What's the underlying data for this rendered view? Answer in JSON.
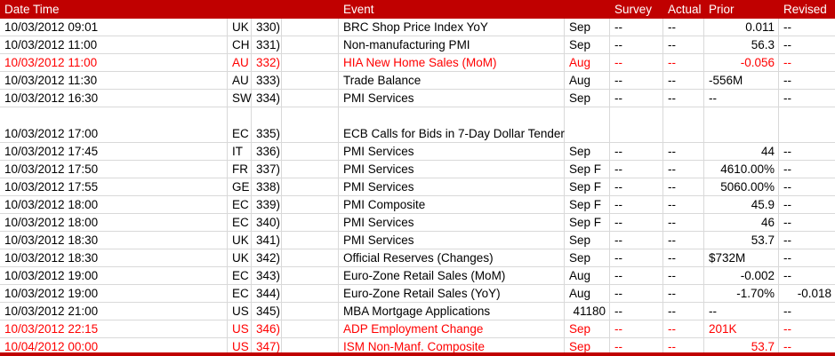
{
  "columns": {
    "date_time": "Date Time",
    "event": "Event",
    "survey": "Survey",
    "actual": "Actual",
    "prior": "Prior",
    "revised": "Revised"
  },
  "colors": {
    "header_bg": "#C00000",
    "header_text": "#FFFFFF",
    "body_text": "#000000",
    "highlight_text": "#FF0000",
    "gridline": "#D9D9D9",
    "row_bg": "#FFFFFF"
  },
  "rows": [
    {
      "date": "10/03/2012 09:01",
      "country": "UK",
      "num": "330)",
      "event": "BRC Shop Price Index YoY",
      "period": "Sep",
      "survey": "--",
      "actual": "--",
      "prior": "0.011",
      "revised": "--",
      "red": false,
      "tall": false
    },
    {
      "date": "10/03/2012 11:00",
      "country": "CH",
      "num": "331)",
      "event": "Non-manufacturing PMI",
      "period": "Sep",
      "survey": "--",
      "actual": "--",
      "prior": "56.3",
      "revised": "--",
      "red": false,
      "tall": false
    },
    {
      "date": "10/03/2012 11:00",
      "country": "AU",
      "num": "332)",
      "event": "HIA New Home Sales (MoM)",
      "period": "Aug",
      "survey": "--",
      "actual": "--",
      "prior": "-0.056",
      "revised": "--",
      "red": true,
      "tall": false
    },
    {
      "date": "10/03/2012 11:30",
      "country": "AU",
      "num": "333)",
      "event": "Trade Balance",
      "period": "Aug",
      "survey": "--",
      "actual": "--",
      "prior": "-556M",
      "revised": "--",
      "red": false,
      "tall": false
    },
    {
      "date": "10/03/2012 16:30",
      "country": "SW",
      "num": "334)",
      "event": "PMI Services",
      "period": "Sep",
      "survey": "--",
      "actual": "--",
      "prior": "--",
      "revised": "--",
      "red": false,
      "tall": false
    },
    {
      "date": "10/03/2012 17:00",
      "country": "EC",
      "num": "335)",
      "event": "ECB Calls for Bids in 7-Day Dollar Tender",
      "period": "",
      "survey": "",
      "actual": "",
      "prior": "",
      "revised": "",
      "red": false,
      "tall": true
    },
    {
      "date": "10/03/2012 17:45",
      "country": "IT",
      "num": "336)",
      "event": "PMI Services",
      "period": "Sep",
      "survey": "--",
      "actual": "--",
      "prior": "44",
      "revised": "--",
      "red": false,
      "tall": false
    },
    {
      "date": "10/03/2012 17:50",
      "country": "FR",
      "num": "337)",
      "event": "PMI Services",
      "period": "Sep F",
      "survey": "--",
      "actual": "--",
      "prior": "4610.00%",
      "revised": "--",
      "red": false,
      "tall": false
    },
    {
      "date": "10/03/2012 17:55",
      "country": "GE",
      "num": "338)",
      "event": "PMI Services",
      "period": "Sep F",
      "survey": "--",
      "actual": "--",
      "prior": "5060.00%",
      "revised": "--",
      "red": false,
      "tall": false
    },
    {
      "date": "10/03/2012 18:00",
      "country": "EC",
      "num": "339)",
      "event": "PMI Composite",
      "period": "Sep F",
      "survey": "--",
      "actual": "--",
      "prior": "45.9",
      "revised": "--",
      "red": false,
      "tall": false
    },
    {
      "date": "10/03/2012 18:00",
      "country": "EC",
      "num": "340)",
      "event": "PMI Services",
      "period": "Sep F",
      "survey": "--",
      "actual": "--",
      "prior": "46",
      "revised": "--",
      "red": false,
      "tall": false
    },
    {
      "date": "10/03/2012 18:30",
      "country": "UK",
      "num": "341)",
      "event": "PMI Services",
      "period": "Sep",
      "survey": "--",
      "actual": "--",
      "prior": "53.7",
      "revised": "--",
      "red": false,
      "tall": false
    },
    {
      "date": "10/03/2012 18:30",
      "country": "UK",
      "num": "342)",
      "event": "Official Reserves (Changes)",
      "period": "Sep",
      "survey": "--",
      "actual": "--",
      "prior": "$732M",
      "revised": "--",
      "red": false,
      "tall": false
    },
    {
      "date": "10/03/2012 19:00",
      "country": "EC",
      "num": "343)",
      "event": "Euro-Zone Retail Sales (MoM)",
      "period": "Aug",
      "survey": "--",
      "actual": "--",
      "prior": "-0.002",
      "revised": "--",
      "red": false,
      "tall": false
    },
    {
      "date": "10/03/2012 19:00",
      "country": "EC",
      "num": "344)",
      "event": "Euro-Zone Retail Sales (YoY)",
      "period": "Aug",
      "survey": "--",
      "actual": "--",
      "prior": "-1.70%",
      "revised": "-0.018",
      "red": false,
      "tall": false
    },
    {
      "date": "10/03/2012 21:00",
      "country": "US",
      "num": "345)",
      "event": "MBA Mortgage Applications",
      "period": "41180",
      "survey": "--",
      "actual": "--",
      "prior": "--",
      "revised": "--",
      "red": false,
      "tall": false
    },
    {
      "date": "10/03/2012 22:15",
      "country": "US",
      "num": "346)",
      "event": "ADP Employment Change",
      "period": "Sep",
      "survey": "--",
      "actual": "--",
      "prior": "201K",
      "revised": "--",
      "red": true,
      "tall": false
    },
    {
      "date": "10/04/2012 00:00",
      "country": "US",
      "num": "347)",
      "event": "ISM Non-Manf. Composite",
      "period": "Sep",
      "survey": "--",
      "actual": "--",
      "prior": "53.7",
      "revised": "--",
      "red": true,
      "tall": false
    }
  ]
}
